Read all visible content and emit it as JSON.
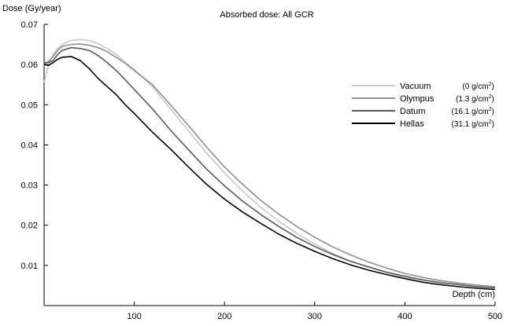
{
  "chart_data": {
    "type": "line",
    "title": "Absorbed dose: All GCR",
    "xlabel": "Depth (cm)",
    "ylabel": "Dose (Gy/year)",
    "xlim": [
      0,
      500
    ],
    "ylim": [
      0,
      0.07
    ],
    "xticks": [
      "100",
      "200",
      "300",
      "400",
      "500"
    ],
    "yticks": [
      "0.01",
      "0.02",
      "0.03",
      "0.04",
      "0.05",
      "0.06",
      "0.07"
    ],
    "grid": false,
    "legend_position": "right",
    "series": [
      {
        "name": "Vacuum",
        "shielding": "(0 g/cm",
        "color": "#c8c8c8",
        "x": [
          0,
          5,
          10,
          15,
          20,
          30,
          40,
          50,
          60,
          70,
          80,
          90,
          100,
          120,
          140,
          160,
          180,
          200,
          220,
          240,
          260,
          280,
          300,
          320,
          340,
          360,
          380,
          400,
          420,
          440,
          460,
          480,
          500
        ],
        "y": [
          0.0555,
          0.06,
          0.0625,
          0.064,
          0.065,
          0.066,
          0.0662,
          0.066,
          0.0652,
          0.064,
          0.0625,
          0.0605,
          0.0588,
          0.0545,
          0.049,
          0.0435,
          0.038,
          0.033,
          0.0285,
          0.0245,
          0.021,
          0.018,
          0.0153,
          0.013,
          0.011,
          0.0095,
          0.0082,
          0.0071,
          0.0063,
          0.0057,
          0.0052,
          0.0048,
          0.0045
        ]
      },
      {
        "name": "Olympus",
        "shielding": "(1.3 g/cm",
        "color": "#909090",
        "x": [
          0,
          5,
          10,
          15,
          20,
          30,
          40,
          50,
          60,
          70,
          80,
          90,
          100,
          120,
          140,
          160,
          180,
          200,
          220,
          240,
          260,
          280,
          300,
          320,
          340,
          360,
          380,
          400,
          420,
          440,
          460,
          480,
          500
        ],
        "y": [
          0.06,
          0.0608,
          0.062,
          0.0635,
          0.0645,
          0.065,
          0.0651,
          0.0648,
          0.0642,
          0.0632,
          0.0618,
          0.0603,
          0.0585,
          0.055,
          0.05,
          0.0448,
          0.0395,
          0.0345,
          0.0302,
          0.0262,
          0.0228,
          0.0197,
          0.017,
          0.0146,
          0.0126,
          0.0108,
          0.0093,
          0.008,
          0.007,
          0.0062,
          0.0056,
          0.0051,
          0.0047
        ]
      },
      {
        "name": "Datum",
        "shielding": "(16.1 g/cm",
        "color": "#5a5a5a",
        "x": [
          0,
          5,
          10,
          15,
          20,
          30,
          40,
          50,
          60,
          70,
          80,
          90,
          100,
          120,
          140,
          160,
          180,
          200,
          220,
          240,
          260,
          280,
          300,
          320,
          340,
          360,
          380,
          400,
          420,
          440,
          460,
          480,
          500
        ],
        "y": [
          0.0605,
          0.0605,
          0.061,
          0.0625,
          0.0635,
          0.0642,
          0.064,
          0.0635,
          0.0622,
          0.0605,
          0.0585,
          0.0562,
          0.0538,
          0.049,
          0.0437,
          0.0388,
          0.034,
          0.0298,
          0.026,
          0.0227,
          0.0197,
          0.017,
          0.0147,
          0.0127,
          0.011,
          0.0096,
          0.0083,
          0.0073,
          0.0064,
          0.0057,
          0.0052,
          0.0047,
          0.0044
        ]
      },
      {
        "name": "Hellas",
        "shielding": "(31.1 g/cm",
        "color": "#000000",
        "x": [
          0,
          5,
          10,
          15,
          20,
          30,
          40,
          50,
          60,
          70,
          80,
          90,
          100,
          120,
          140,
          160,
          180,
          200,
          220,
          240,
          260,
          280,
          300,
          320,
          340,
          360,
          380,
          400,
          420,
          440,
          460,
          480,
          500
        ],
        "y": [
          0.06,
          0.0598,
          0.0605,
          0.0613,
          0.0618,
          0.062,
          0.061,
          0.059,
          0.0565,
          0.0545,
          0.0525,
          0.05,
          0.0478,
          0.0432,
          0.039,
          0.0345,
          0.0302,
          0.0265,
          0.0233,
          0.0205,
          0.0178,
          0.0155,
          0.0135,
          0.0117,
          0.0101,
          0.0088,
          0.0077,
          0.0067,
          0.0058,
          0.0052,
          0.0047,
          0.0043,
          0.004
        ]
      }
    ],
    "superscript": "2",
    "closing": ")"
  }
}
